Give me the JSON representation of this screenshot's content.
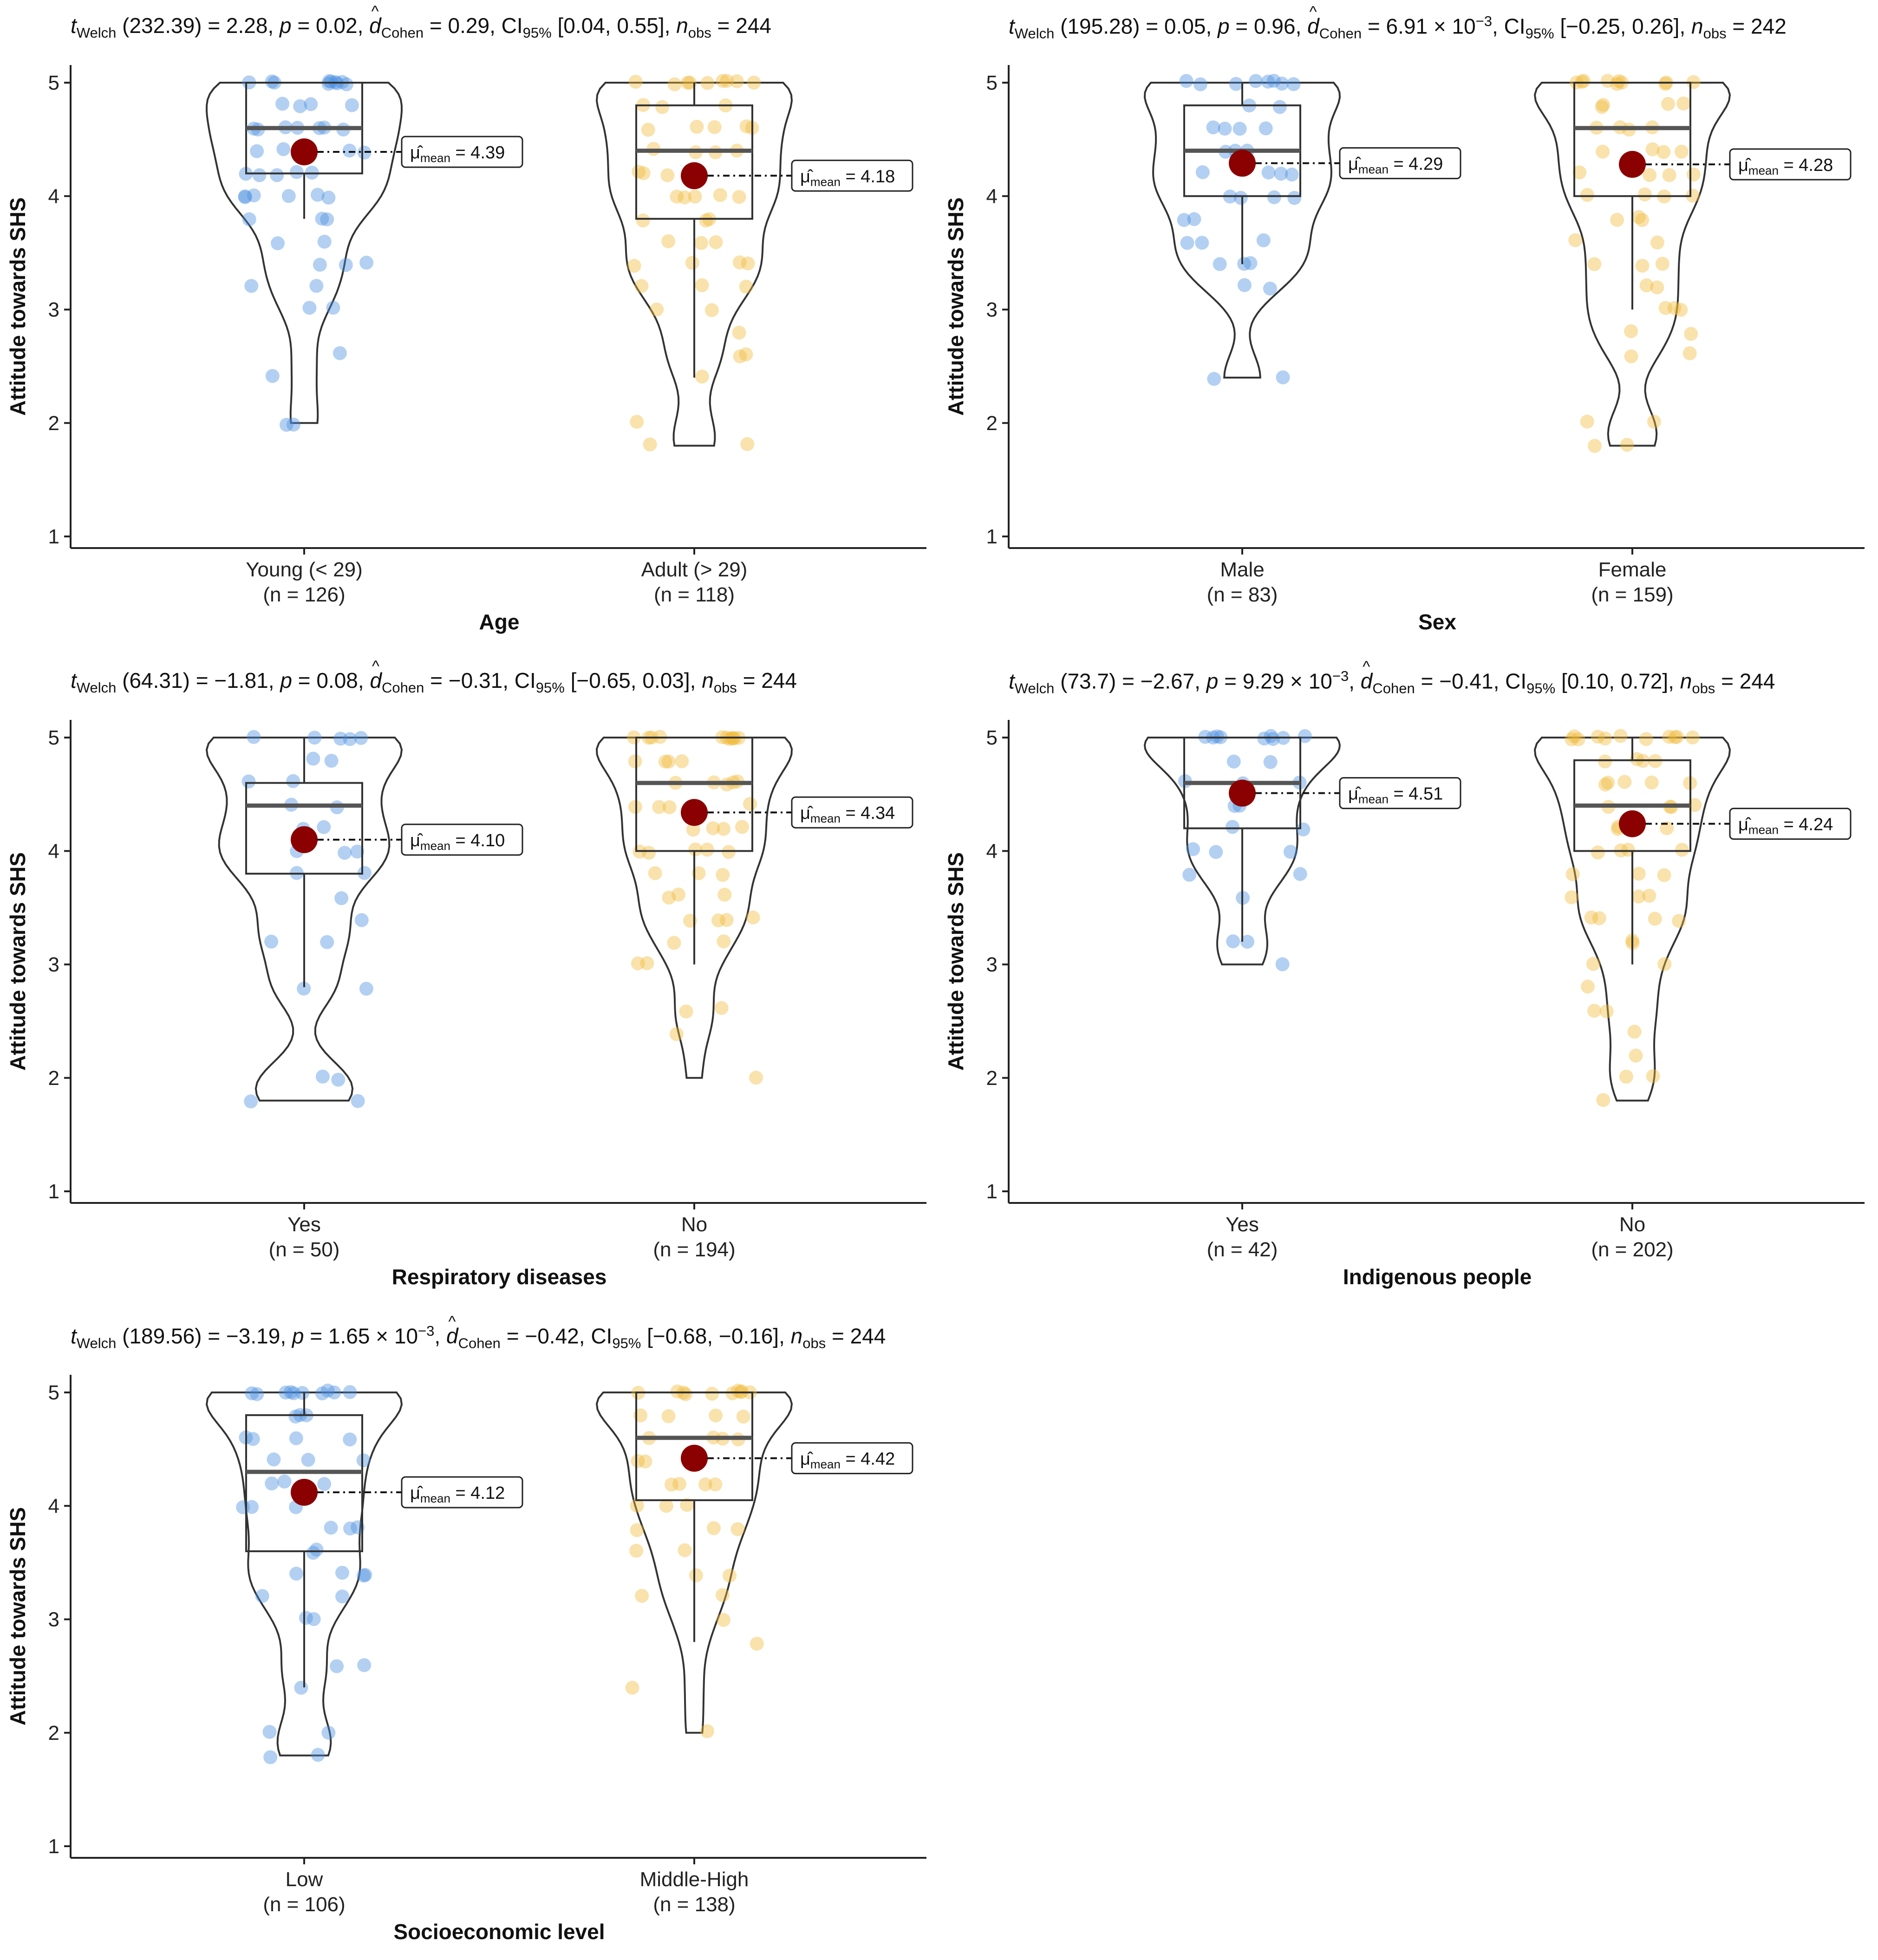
{
  "chart_data": [
    {
      "type": "violin-box-scatter",
      "stats_line": {
        "df": "232.39",
        "t": "2.28",
        "p": "0.02",
        "d": "0.29",
        "ci": "[0.04, 0.55]",
        "nobs": "244"
      },
      "xlabel": "Age",
      "ylabel": "Attitude towards SHS",
      "ylim": [
        1,
        5
      ],
      "yticks": [
        1,
        2,
        3,
        4,
        5
      ],
      "groups": [
        {
          "label": "Young (< 29)",
          "n_label": "(n = 126)",
          "mean": 4.39,
          "mean_label": "4.39",
          "median": 4.6,
          "q1": 4.2,
          "q3": 5.0,
          "wmin": 3.8,
          "wmax": 5.0,
          "vmin": 2.0,
          "vmax": 5.0,
          "color": "#4a8fe0",
          "points": [
            5,
            5,
            5,
            5,
            5,
            5,
            5,
            5,
            5,
            5,
            4.8,
            4.8,
            4.8,
            4.8,
            4.6,
            4.6,
            4.6,
            4.6,
            4.6,
            4.6,
            4.6,
            4.4,
            4.4,
            4.4,
            4.4,
            4.4,
            4.2,
            4.2,
            4.2,
            4.2,
            4.2,
            4.0,
            4.0,
            4.0,
            4.0,
            4.0,
            4.0,
            3.8,
            3.8,
            3.8,
            3.6,
            3.6,
            3.4,
            3.4,
            3.4,
            3.2,
            3.2,
            3.0,
            3.0,
            2.6,
            2.4,
            2.0,
            2.0
          ]
        },
        {
          "label": "Adult (> 29)",
          "n_label": "(n = 118)",
          "mean": 4.18,
          "mean_label": "4.18",
          "median": 4.4,
          "q1": 3.8,
          "q3": 4.8,
          "wmin": 2.4,
          "wmax": 5.0,
          "vmin": 1.8,
          "vmax": 5.0,
          "color": "#f0b93a",
          "points": [
            5,
            5,
            5,
            5,
            5,
            5,
            5,
            5,
            5,
            4.8,
            4.8,
            4.8,
            4.6,
            4.6,
            4.6,
            4.6,
            4.6,
            4.4,
            4.4,
            4.4,
            4.4,
            4.2,
            4.2,
            4.2,
            4.2,
            4.0,
            4.0,
            4.0,
            4.0,
            4.0,
            3.8,
            3.8,
            3.8,
            3.6,
            3.6,
            3.6,
            3.4,
            3.4,
            3.4,
            3.4,
            3.2,
            3.2,
            3.2,
            3.0,
            3.0,
            2.8,
            2.6,
            2.6,
            2.4,
            2.0,
            1.8,
            1.8
          ]
        }
      ]
    },
    {
      "type": "violin-box-scatter",
      "stats_line": {
        "df": "195.28",
        "t": "0.05",
        "p": "0.96",
        "d": "6.91 × 10",
        "d_exp": "−3",
        "ci": "[−0.25, 0.26]",
        "nobs": "242"
      },
      "xlabel": "Sex",
      "ylabel": "Attitude towards SHS",
      "ylim": [
        1,
        5
      ],
      "yticks": [
        1,
        2,
        3,
        4,
        5
      ],
      "groups": [
        {
          "label": "Male",
          "n_label": "(n = 83)",
          "mean": 4.29,
          "mean_label": "4.29",
          "median": 4.4,
          "q1": 4.0,
          "q3": 4.8,
          "wmin": 3.4,
          "wmax": 5.0,
          "vmin": 2.4,
          "vmax": 5.0,
          "color": "#4a8fe0",
          "points": [
            5,
            5,
            5,
            5,
            5,
            5,
            5,
            5,
            4.8,
            4.8,
            4.6,
            4.6,
            4.6,
            4.6,
            4.4,
            4.4,
            4.4,
            4.2,
            4.2,
            4.2,
            4.2,
            4.0,
            4.0,
            4.0,
            4.0,
            3.8,
            3.8,
            3.6,
            3.6,
            3.6,
            3.4,
            3.4,
            3.4,
            3.2,
            3.2,
            2.4,
            2.4
          ]
        },
        {
          "label": "Female",
          "n_label": "(n = 159)",
          "mean": 4.28,
          "mean_label": "4.28",
          "median": 4.6,
          "q1": 4.0,
          "q3": 5.0,
          "wmin": 3.0,
          "wmax": 5.0,
          "vmin": 1.8,
          "vmax": 5.0,
          "color": "#f0b93a",
          "points": [
            5,
            5,
            5,
            5,
            5,
            5,
            5,
            5,
            5,
            5,
            4.8,
            4.8,
            4.8,
            4.8,
            4.6,
            4.6,
            4.6,
            4.6,
            4.4,
            4.4,
            4.4,
            4.4,
            4.2,
            4.2,
            4.2,
            4.2,
            4.0,
            4.0,
            4.0,
            4.0,
            3.8,
            3.8,
            3.8,
            3.6,
            3.6,
            3.4,
            3.4,
            3.4,
            3.2,
            3.2,
            3.0,
            3.0,
            3.0,
            2.8,
            2.8,
            2.6,
            2.6,
            2.0,
            2.0,
            1.8,
            1.8
          ]
        }
      ]
    },
    {
      "type": "violin-box-scatter",
      "stats_line": {
        "df": "64.31",
        "t": "−1.81",
        "p": "0.08",
        "d": "−0.31",
        "ci": "[−0.65, 0.03]",
        "nobs": "244"
      },
      "xlabel": "Respiratory diseases",
      "ylabel": "Attitude towards SHS",
      "ylim": [
        1,
        5
      ],
      "yticks": [
        1,
        2,
        3,
        4,
        5
      ],
      "groups": [
        {
          "label": "Yes",
          "n_label": "(n = 50)",
          "mean": 4.1,
          "mean_label": "4.10",
          "median": 4.4,
          "q1": 3.8,
          "q3": 4.6,
          "wmin": 2.8,
          "wmax": 5.0,
          "vmin": 1.8,
          "vmax": 5.0,
          "color": "#4a8fe0",
          "points": [
            5,
            5,
            5,
            5,
            5,
            4.8,
            4.8,
            4.6,
            4.6,
            4.4,
            4.4,
            4.2,
            4.2,
            4.0,
            4.0,
            4.0,
            3.8,
            3.8,
            3.6,
            3.4,
            3.2,
            3.2,
            2.8,
            2.8,
            2.0,
            2.0,
            1.8,
            1.8
          ]
        },
        {
          "label": "No",
          "n_label": "(n = 194)",
          "mean": 4.34,
          "mean_label": "4.34",
          "median": 4.6,
          "q1": 4.0,
          "q3": 5.0,
          "wmin": 3.0,
          "wmax": 5.0,
          "vmin": 2.0,
          "vmax": 5.0,
          "color": "#f0b93a",
          "points": [
            5,
            5,
            5,
            5,
            5,
            5,
            5,
            5,
            5,
            5,
            5,
            4.8,
            4.8,
            4.8,
            4.8,
            4.6,
            4.6,
            4.6,
            4.6,
            4.6,
            4.4,
            4.4,
            4.4,
            4.4,
            4.2,
            4.2,
            4.2,
            4.2,
            4.0,
            4.0,
            4.0,
            4.0,
            4.0,
            3.8,
            3.8,
            3.8,
            3.6,
            3.6,
            3.6,
            3.4,
            3.4,
            3.4,
            3.4,
            3.2,
            3.2,
            3.0,
            3.0,
            2.6,
            2.6,
            2.4,
            2.0
          ]
        }
      ]
    },
    {
      "type": "violin-box-scatter",
      "stats_line": {
        "df": "73.7",
        "t": "−2.67",
        "p": "9.29 × 10",
        "p_exp": "−3",
        "d": "−0.41",
        "ci": "[0.10, 0.72]",
        "nobs": "244"
      },
      "xlabel": "Indigenous people",
      "ylabel": "Attitude towards SHS",
      "ylim": [
        1,
        5
      ],
      "yticks": [
        1,
        2,
        3,
        4,
        5
      ],
      "groups": [
        {
          "label": "Yes",
          "n_label": "(n = 42)",
          "mean": 4.51,
          "mean_label": "4.51",
          "median": 4.6,
          "q1": 4.2,
          "q3": 5.0,
          "wmin": 3.2,
          "wmax": 5.0,
          "vmin": 3.0,
          "vmax": 5.0,
          "color": "#4a8fe0",
          "points": [
            5,
            5,
            5,
            5,
            5,
            5,
            5,
            5,
            5,
            4.8,
            4.8,
            4.6,
            4.6,
            4.6,
            4.4,
            4.4,
            4.2,
            4.2,
            4.0,
            4.0,
            4.0,
            3.8,
            3.8,
            3.6,
            3.2,
            3.2,
            3.0
          ]
        },
        {
          "label": "No",
          "n_label": "(n = 202)",
          "mean": 4.24,
          "mean_label": "4.24",
          "median": 4.4,
          "q1": 4.0,
          "q3": 4.8,
          "wmin": 3.0,
          "wmax": 5.0,
          "vmin": 1.8,
          "vmax": 5.0,
          "color": "#f0b93a",
          "points": [
            5,
            5,
            5,
            5,
            5,
            5,
            5,
            5,
            5,
            5,
            5,
            4.8,
            4.8,
            4.8,
            4.8,
            4.6,
            4.6,
            4.6,
            4.6,
            4.6,
            4.4,
            4.4,
            4.4,
            4.4,
            4.2,
            4.2,
            4.2,
            4.2,
            4.0,
            4.0,
            4.0,
            4.0,
            3.8,
            3.8,
            3.8,
            3.6,
            3.6,
            3.6,
            3.4,
            3.4,
            3.4,
            3.4,
            3.2,
            3.2,
            3.0,
            3.0,
            2.8,
            2.6,
            2.6,
            2.4,
            2.2,
            2.0,
            2.0,
            1.8
          ]
        }
      ]
    },
    {
      "type": "violin-box-scatter",
      "stats_line": {
        "df": "189.56",
        "t": "−3.19",
        "p": "1.65 × 10",
        "p_exp": "−3",
        "d": "−0.42",
        "ci": "[−0.68, −0.16]",
        "nobs": "244"
      },
      "xlabel": "Socioeconomic level",
      "ylabel": "Attitude towards SHS",
      "ylim": [
        1,
        5
      ],
      "yticks": [
        1,
        2,
        3,
        4,
        5
      ],
      "groups": [
        {
          "label": "Low",
          "n_label": "(n = 106)",
          "mean": 4.12,
          "mean_label": "4.12",
          "median": 4.3,
          "q1": 3.6,
          "q3": 4.8,
          "wmin": 2.4,
          "wmax": 5.0,
          "vmin": 1.8,
          "vmax": 5.0,
          "color": "#4a8fe0",
          "points": [
            5,
            5,
            5,
            5,
            5,
            5,
            5,
            5,
            5,
            5,
            4.8,
            4.8,
            4.8,
            4.6,
            4.6,
            4.6,
            4.6,
            4.4,
            4.4,
            4.4,
            4.2,
            4.2,
            4.2,
            4.0,
            4.0,
            4.0,
            3.8,
            3.8,
            3.8,
            3.6,
            3.6,
            3.4,
            3.4,
            3.4,
            3.4,
            3.2,
            3.2,
            3.0,
            3.0,
            2.6,
            2.6,
            2.4,
            2.0,
            2.0,
            1.8,
            1.8
          ]
        },
        {
          "label": "Middle-High",
          "n_label": "(n = 138)",
          "mean": 4.42,
          "mean_label": "4.42",
          "median": 4.6,
          "q1": 4.05,
          "q3": 5.0,
          "wmin": 2.8,
          "wmax": 5.0,
          "vmin": 2.0,
          "vmax": 5.0,
          "color": "#f0b93a",
          "points": [
            5,
            5,
            5,
            5,
            5,
            5,
            5,
            5,
            5,
            5,
            4.8,
            4.8,
            4.8,
            4.8,
            4.6,
            4.6,
            4.6,
            4.6,
            4.4,
            4.4,
            4.4,
            4.2,
            4.2,
            4.2,
            4.2,
            4.0,
            4.0,
            4.0,
            3.8,
            3.8,
            3.8,
            3.6,
            3.6,
            3.4,
            3.4,
            3.2,
            3.2,
            3.0,
            2.8,
            2.4,
            2.0
          ]
        }
      ]
    }
  ]
}
